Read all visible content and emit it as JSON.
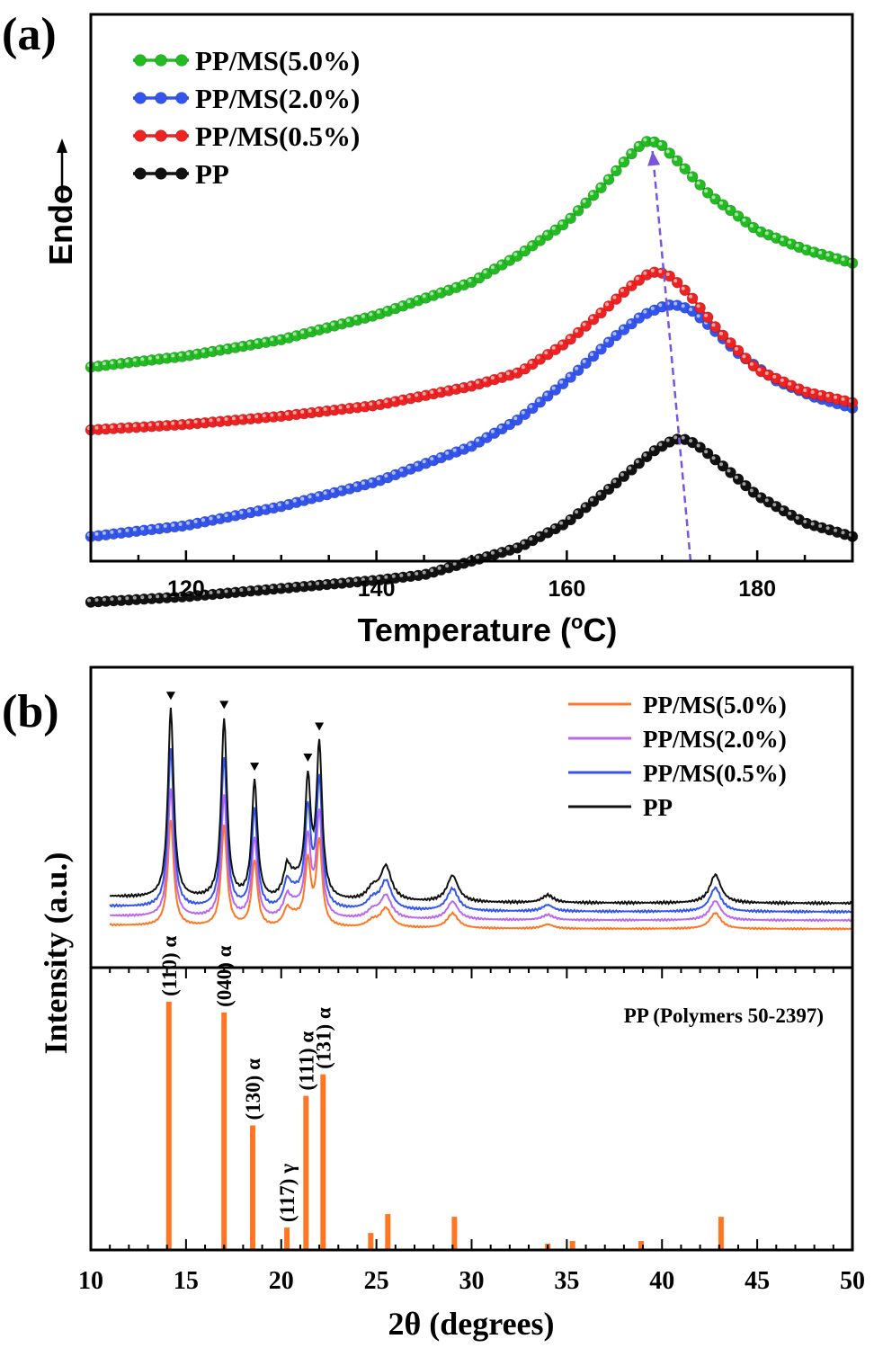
{
  "chart_data": [
    {
      "panel": "(a)",
      "type": "line",
      "xlabel": "Temperature (°C)",
      "ylabel": "Endo",
      "xlim": [
        110,
        190
      ],
      "x_ticks": [
        120,
        140,
        160,
        180
      ],
      "yticks_shown": false,
      "legend_position": "top-left",
      "series": [
        {
          "name": "PP/MS(5.0%)",
          "color": "#22bb22",
          "peak_x": 168.8,
          "points": [
            [
              110,
              0.645
            ],
            [
              120,
              0.625
            ],
            [
              130,
              0.595
            ],
            [
              140,
              0.55
            ],
            [
              150,
              0.49
            ],
            [
              155,
              0.44
            ],
            [
              160,
              0.38
            ],
            [
              164,
              0.31
            ],
            [
              166.5,
              0.26
            ],
            [
              168,
              0.235
            ],
            [
              168.8,
              0.23
            ],
            [
              170,
              0.24
            ],
            [
              172,
              0.275
            ],
            [
              175,
              0.33
            ],
            [
              180,
              0.395
            ],
            [
              185,
              0.43
            ],
            [
              190,
              0.455
            ]
          ]
        },
        {
          "name": "PP/MS(2.0%)",
          "color": "#3355ee",
          "peak_x": 171.2,
          "points": [
            [
              110,
              0.955
            ],
            [
              120,
              0.935
            ],
            [
              130,
              0.9
            ],
            [
              140,
              0.855
            ],
            [
              150,
              0.79
            ],
            [
              155,
              0.74
            ],
            [
              160,
              0.67
            ],
            [
              165,
              0.59
            ],
            [
              168,
              0.55
            ],
            [
              170,
              0.535
            ],
            [
              171.2,
              0.53
            ],
            [
              173,
              0.54
            ],
            [
              175,
              0.57
            ],
            [
              178,
              0.62
            ],
            [
              182,
              0.67
            ],
            [
              186,
              0.7
            ],
            [
              190,
              0.72
            ]
          ]
        },
        {
          "name": "PP/MS(0.5%)",
          "color": "#ee2222",
          "peak_x": 169.5,
          "points": [
            [
              110,
              0.76
            ],
            [
              120,
              0.75
            ],
            [
              130,
              0.735
            ],
            [
              140,
              0.715
            ],
            [
              150,
              0.68
            ],
            [
              155,
              0.655
            ],
            [
              160,
              0.6
            ],
            [
              164,
              0.54
            ],
            [
              166.5,
              0.5
            ],
            [
              168.5,
              0.475
            ],
            [
              169.5,
              0.47
            ],
            [
              171,
              0.48
            ],
            [
              173,
              0.515
            ],
            [
              176,
              0.58
            ],
            [
              180,
              0.65
            ],
            [
              185,
              0.69
            ],
            [
              190,
              0.71
            ]
          ]
        },
        {
          "name": "PP",
          "color": "#111111",
          "peak_x": 172,
          "points": [
            [
              110,
              1.075
            ],
            [
              120,
              1.065
            ],
            [
              130,
              1.05
            ],
            [
              140,
              1.035
            ],
            [
              145,
              1.025
            ],
            [
              150,
              1.0
            ],
            [
              155,
              0.975
            ],
            [
              160,
              0.93
            ],
            [
              165,
              0.86
            ],
            [
              169,
              0.8
            ],
            [
              171,
              0.78
            ],
            [
              172,
              0.775
            ],
            [
              173.5,
              0.785
            ],
            [
              176,
              0.82
            ],
            [
              180,
              0.88
            ],
            [
              185,
              0.93
            ],
            [
              190,
              0.955
            ]
          ]
        }
      ],
      "annotation": {
        "type": "dashed-arrow",
        "color": "#7755dd",
        "from": [
          173,
          1.0
        ],
        "to": [
          169,
          0.25
        ]
      }
    },
    {
      "panel": "(b)",
      "type": "line",
      "xlabel": "2θ (degrees)",
      "ylabel": "Intensity (a.u.)",
      "xlim": [
        10,
        50
      ],
      "x_ticks": [
        10,
        15,
        20,
        25,
        30,
        35,
        40,
        45,
        50
      ],
      "legend_position": "top-right",
      "peaks": [
        [
          14.2,
          1.0
        ],
        [
          17.0,
          0.95
        ],
        [
          18.6,
          0.62
        ],
        [
          20.3,
          0.1
        ],
        [
          21.4,
          0.6
        ],
        [
          22.0,
          0.8
        ],
        [
          24.8,
          0.06
        ],
        [
          25.5,
          0.18
        ],
        [
          29.0,
          0.14
        ],
        [
          34.0,
          0.04
        ],
        [
          42.8,
          0.15
        ]
      ],
      "peak_markers_x": [
        14.2,
        17.0,
        18.6,
        21.4,
        22.0
      ],
      "series": [
        {
          "name": "PP/MS(5.0%)",
          "color": "#ff7722",
          "scale": 0.56,
          "offset": 0
        },
        {
          "name": "PP/MS(2.0%)",
          "color": "#bb66ee",
          "scale": 0.68,
          "offset": 1
        },
        {
          "name": "PP/MS(0.5%)",
          "color": "#3355ee",
          "scale": 0.84,
          "offset": 2
        },
        {
          "name": "PP",
          "color": "#111111",
          "scale": 1.0,
          "offset": 3
        }
      ]
    },
    {
      "panel": "(b)-reference",
      "type": "bar",
      "title": "PP (Polymers 50-2397)",
      "xlabel": "2θ (degrees)",
      "xlim": [
        10,
        50
      ],
      "ylim": [
        0,
        1
      ],
      "color": "#ff7722",
      "bars": [
        {
          "x": 14.1,
          "value": 0.92,
          "label": "(110) α"
        },
        {
          "x": 17.0,
          "value": 0.88,
          "label": "(040) α"
        },
        {
          "x": 18.5,
          "value": 0.46,
          "label": "(130) α"
        },
        {
          "x": 20.3,
          "value": 0.08,
          "label": "(117) γ"
        },
        {
          "x": 21.3,
          "value": 0.57,
          "label": "(111) α"
        },
        {
          "x": 22.2,
          "value": 0.65,
          "label": "(131) α"
        },
        {
          "x": 24.7,
          "value": 0.06,
          "label": ""
        },
        {
          "x": 25.6,
          "value": 0.13,
          "label": ""
        },
        {
          "x": 29.1,
          "value": 0.12,
          "label": ""
        },
        {
          "x": 34.0,
          "value": 0.02,
          "label": ""
        },
        {
          "x": 35.3,
          "value": 0.03,
          "label": ""
        },
        {
          "x": 38.9,
          "value": 0.03,
          "label": ""
        },
        {
          "x": 43.1,
          "value": 0.12,
          "label": ""
        }
      ]
    }
  ],
  "labels": {
    "panel_a": "(a)",
    "panel_b": "(b)",
    "a_xlabel_prefix": "Temperature (",
    "a_xlabel_deg": "o",
    "a_xlabel_suffix": "C)",
    "a_ylabel": "Endo",
    "b_xlabel": "2θ (degrees)",
    "b_ylabel": "Intensity (a.u.)",
    "ref_title": "PP (Polymers 50-2397)"
  }
}
